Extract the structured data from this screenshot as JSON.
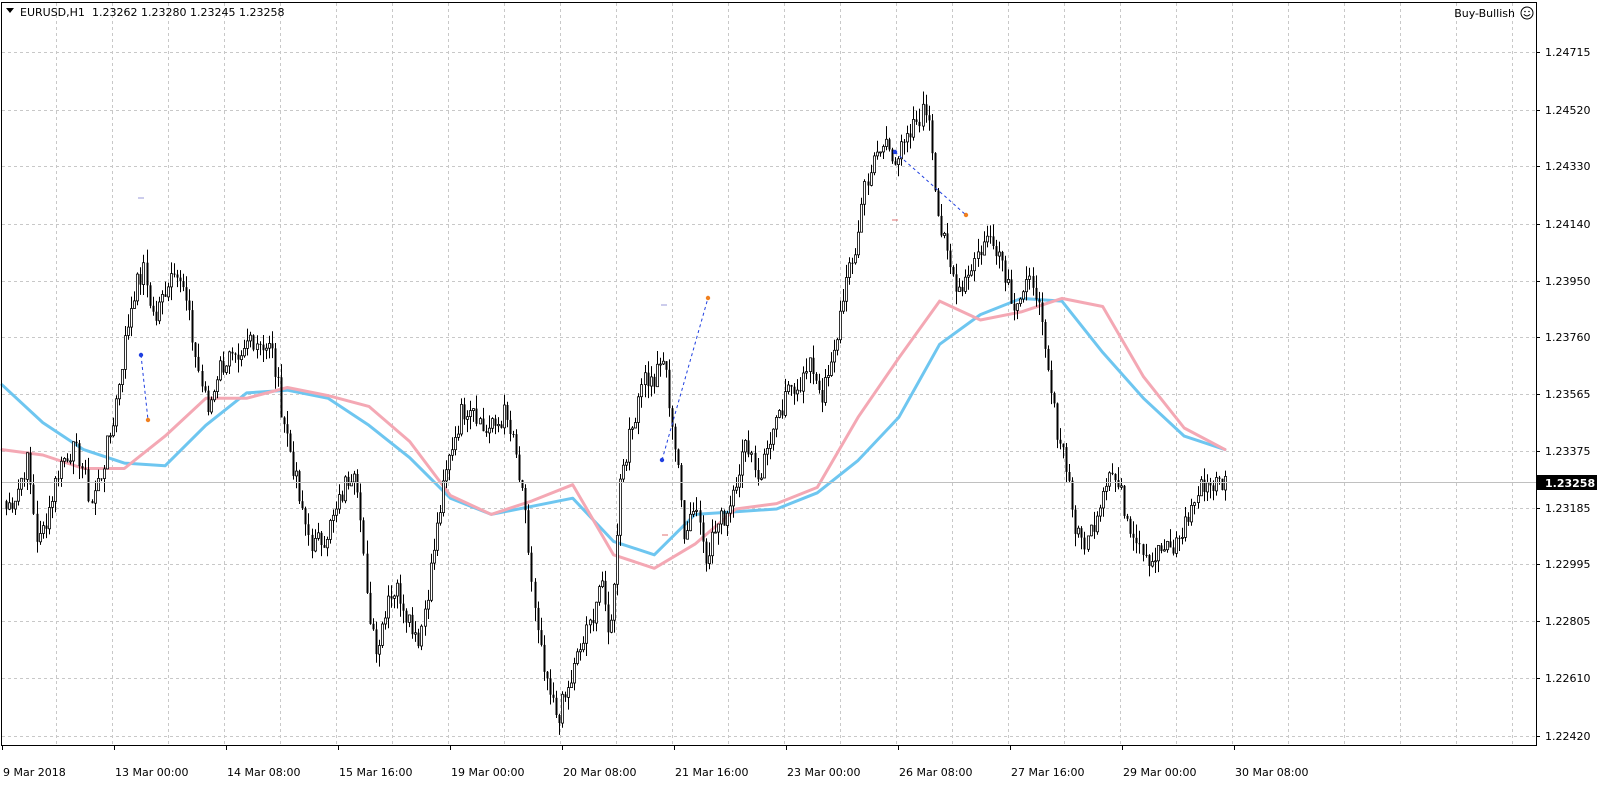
{
  "header": {
    "symbol": "EURUSD,H1",
    "ohlc": "1.23262 1.23280 1.23245 1.23258"
  },
  "signal": {
    "label": "Buy-Bullish",
    "icon": "smiley-icon"
  },
  "colors": {
    "background": "#ffffff",
    "grid": "#c8c8c8",
    "candle": "#000000",
    "ma_fast": "#f4a8b4",
    "ma_slow": "#6ec6f0",
    "price_line": "#c0c0c0",
    "price_tag_bg": "#000000",
    "marker_blue": "#1f3fe0",
    "marker_orange": "#f08020"
  },
  "chart_data": {
    "type": "candlestick",
    "symbol": "EURUSD",
    "timeframe": "H1",
    "y_ticks": [
      "1.24715",
      "1.24520",
      "1.24330",
      "1.24140",
      "1.23950",
      "1.23760",
      "1.23565",
      "1.23375",
      "1.23185",
      "1.22995",
      "1.22805",
      "1.22610",
      "1.22420"
    ],
    "x_ticks": [
      "9 Mar 2018",
      "13 Mar 00:00",
      "14 Mar 08:00",
      "15 Mar 16:00",
      "19 Mar 00:00",
      "20 Mar 08:00",
      "21 Mar 16:00",
      "23 Mar 00:00",
      "26 Mar 08:00",
      "27 Mar 16:00",
      "29 Mar 00:00",
      "30 Mar 08:00"
    ],
    "ylim": [
      1.2232,
      1.2484
    ],
    "grid": true,
    "current_price": "1.23258",
    "close_path": [
      1.2316,
      1.2322,
      1.2334,
      1.2302,
      1.2316,
      1.2332,
      1.2338,
      1.2335,
      1.2318,
      1.233,
      1.2347,
      1.2372,
      1.2396,
      1.2404,
      1.2385,
      1.2398,
      1.2408,
      1.2392,
      1.237,
      1.2352,
      1.2368,
      1.2372,
      1.2367,
      1.238,
      1.2378,
      1.2375,
      1.2353,
      1.2334,
      1.2312,
      1.2302,
      1.2306,
      1.2313,
      1.2325,
      1.2334,
      1.2282,
      1.2264,
      1.2285,
      1.2286,
      1.2276,
      1.2268,
      1.2292,
      1.2318,
      1.2339,
      1.2352,
      1.2356,
      1.2345,
      1.2346,
      1.2351,
      1.2338,
      1.2312,
      1.2272,
      1.2249,
      1.2239,
      1.2248,
      1.2262,
      1.2272,
      1.2289,
      1.2269,
      1.2331,
      1.2344,
      1.2366,
      1.2362,
      1.2372,
      1.2343,
      1.2308,
      1.2319,
      1.23,
      1.2309,
      1.2315,
      1.233,
      1.2341,
      1.2327,
      1.2342,
      1.2349,
      1.2362,
      1.2363,
      1.2369,
      1.2358,
      1.237,
      1.2397,
      1.2408,
      1.2437,
      1.2445,
      1.2452,
      1.2446,
      1.2451,
      1.2461,
      1.2464,
      1.2422,
      1.2405,
      1.2398,
      1.2406,
      1.2413,
      1.2418,
      1.2408,
      1.2393,
      1.2395,
      1.2402,
      1.2372,
      1.2348,
      1.2334,
      1.2305,
      1.2304,
      1.2317,
      1.2332,
      1.2323,
      1.2311,
      1.2304,
      1.2297,
      1.2301,
      1.23,
      1.2308,
      1.2318,
      1.2326,
      1.2325,
      1.2326
    ],
    "ma_fast": [
      1.2338,
      1.2336,
      1.2331,
      1.2331,
      1.2343,
      1.2357,
      1.2357,
      1.2361,
      1.2358,
      1.2354,
      1.2341,
      1.2321,
      1.2314,
      1.2319,
      1.2325,
      1.2299,
      1.2294,
      1.2303,
      1.2316,
      1.2318,
      1.2324,
      1.235,
      1.2372,
      1.2393,
      1.2386,
      1.2389,
      1.2394,
      1.2391,
      1.2365,
      1.2346,
      1.2338
    ],
    "ma_slow": [
      1.2362,
      1.2348,
      1.2338,
      1.2333,
      1.2332,
      1.2347,
      1.2359,
      1.236,
      1.2357,
      1.2347,
      1.2335,
      1.232,
      1.2314,
      1.2317,
      1.232,
      1.2304,
      1.2299,
      1.2314,
      1.2315,
      1.2316,
      1.2322,
      1.2334,
      1.235,
      1.2377,
      1.2388,
      1.2394,
      1.2393,
      1.2374,
      1.2357,
      1.2343,
      1.2338
    ]
  }
}
